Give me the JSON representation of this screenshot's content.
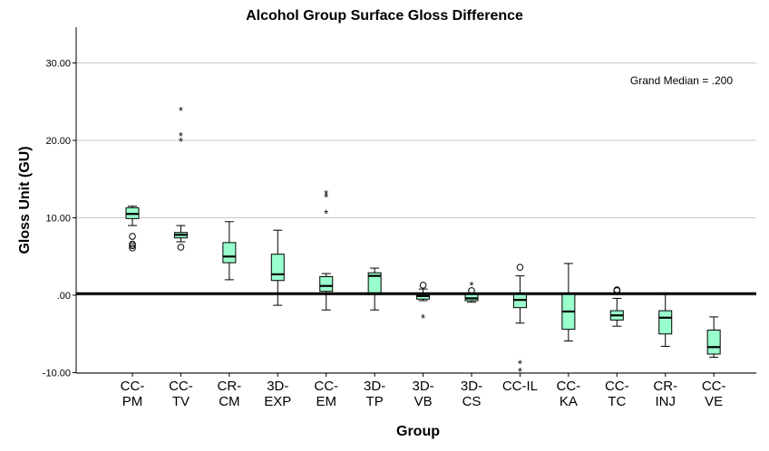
{
  "chart_data": {
    "type": "boxplot",
    "title": "Alcohol Group Surface Gloss Difference",
    "xlabel": "Group",
    "ylabel": "Gloss Unit (GU)",
    "ylim": [
      -10,
      33
    ],
    "yticks": [
      -10,
      0,
      10,
      20,
      30
    ],
    "ytick_labels": [
      "-10.00",
      ".00",
      "10.00",
      "20.00",
      "30.00"
    ],
    "grid": "horizontal",
    "reference_line": {
      "value": 0.2,
      "label": "Grand Median = .200"
    },
    "box_color": "#99FFCC",
    "groups": [
      {
        "label": [
          "CC-",
          "PM"
        ],
        "whisker_low": 9.0,
        "q1": 9.9,
        "median": 10.5,
        "q3": 11.3,
        "whisker_high": 11.5,
        "outliers": [
          7.6,
          6.6,
          6.4,
          6.1
        ],
        "extremes": []
      },
      {
        "label": [
          "CC-",
          "TV"
        ],
        "whisker_low": 6.9,
        "q1": 7.4,
        "median": 7.8,
        "q3": 8.1,
        "whisker_high": 9.0,
        "outliers": [
          6.2
        ],
        "extremes": [
          24.0,
          20.7,
          20.0
        ]
      },
      {
        "label": [
          "CR-",
          "CM"
        ],
        "whisker_low": 2.0,
        "q1": 4.2,
        "median": 5.0,
        "q3": 6.8,
        "whisker_high": 9.5,
        "outliers": [],
        "extremes": []
      },
      {
        "label": [
          "3D-",
          "EXP"
        ],
        "whisker_low": -1.3,
        "q1": 1.9,
        "median": 2.7,
        "q3": 5.3,
        "whisker_high": 8.4,
        "outliers": [],
        "extremes": []
      },
      {
        "label": [
          "CC-",
          "EM"
        ],
        "whisker_low": -1.9,
        "q1": 0.5,
        "median": 1.2,
        "q3": 2.4,
        "whisker_high": 2.8,
        "outliers": [],
        "extremes": [
          13.2,
          12.8,
          10.7
        ]
      },
      {
        "label": [
          "3D-",
          "TP"
        ],
        "whisker_low": -1.9,
        "q1": 0.2,
        "median": 2.5,
        "q3": 2.9,
        "whisker_high": 3.5,
        "outliers": [],
        "extremes": []
      },
      {
        "label": [
          "3D-",
          "VB"
        ],
        "whisker_low": -0.7,
        "q1": -0.5,
        "median": -0.1,
        "q3": 0.2,
        "whisker_high": 0.8,
        "outliers": [
          1.3
        ],
        "extremes": [
          -2.8
        ]
      },
      {
        "label": [
          "3D-",
          "CS"
        ],
        "whisker_low": -0.9,
        "q1": -0.7,
        "median": -0.4,
        "q3": 0.1,
        "whisker_high": 0.3,
        "outliers": [
          0.6
        ],
        "extremes": [
          1.4
        ]
      },
      {
        "label": [
          "CC-IL"
        ],
        "whisker_low": -3.6,
        "q1": -1.6,
        "median": -0.6,
        "q3": 0.2,
        "whisker_high": 2.5,
        "outliers": [
          3.6
        ],
        "extremes": [
          -8.7,
          -9.7
        ]
      },
      {
        "label": [
          "CC-",
          "KA"
        ],
        "whisker_low": -5.9,
        "q1": -4.4,
        "median": -2.1,
        "q3": 0.2,
        "whisker_high": 4.1,
        "outliers": [],
        "extremes": []
      },
      {
        "label": [
          "CC-",
          "TC"
        ],
        "whisker_low": -4.0,
        "q1": -3.2,
        "median": -2.6,
        "q3": -2.0,
        "whisker_high": -0.4,
        "outliers": [
          0.6,
          0.7
        ],
        "extremes": []
      },
      {
        "label": [
          "CR-",
          "INJ"
        ],
        "whisker_low": -6.6,
        "q1": -5.0,
        "median": -2.9,
        "q3": -2.0,
        "whisker_high": 0.3,
        "outliers": [],
        "extremes": []
      },
      {
        "label": [
          "CC-",
          "VE"
        ],
        "whisker_low": -8.0,
        "q1": -7.6,
        "median": -6.7,
        "q3": -4.5,
        "whisker_high": -2.8,
        "outliers": [],
        "extremes": []
      }
    ]
  }
}
